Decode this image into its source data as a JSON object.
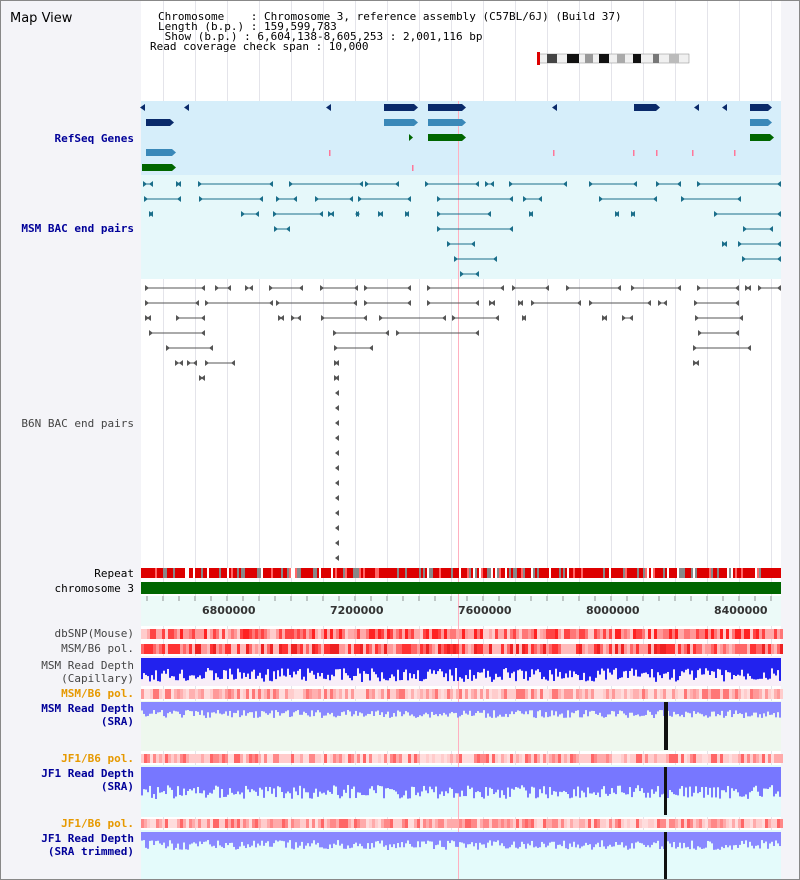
{
  "view_title": "Map View",
  "header": {
    "line1": "Chromosome    : Chromosome 3, reference assembly (C57BL/6J) (Build 37)",
    "line2": "Length (b.p.) : 159,599,783",
    "line3": " Show (b.p.) : 6,604,138-8,605,253 : 2,001,116 bp",
    "line4": "Read coverage check span : 10,000"
  },
  "tracks": {
    "refseq": "RefSeq Genes",
    "msm_bac": "MSM BAC end pairs",
    "b6n_bac": "B6N BAC end pairs",
    "repeat": "Repeat",
    "chromosome": "chromosome 3",
    "dbsnp": "dbSNP(Mouse)",
    "msm_b6_pol_1": "MSM/B6 pol.",
    "msm_read_depth_cap": "MSM Read Depth\n(Capillary)",
    "msm_b6_pol_2": "MSM/B6 pol.",
    "msm_read_depth_sra": "MSM Read Depth\n(SRA)",
    "jf1_b6_pol_1": "JF1/B6 pol.",
    "jf1_read_depth_sra": "JF1 Read Depth\n(SRA)",
    "jf1_b6_pol_2": "JF1/B6 pol.",
    "jf1_read_depth_trim": "JF1 Read Depth\n(SRA trimmed)"
  },
  "axis": {
    "ticks": [
      "6800000",
      "7200000",
      "7600000",
      "8000000",
      "8400000"
    ]
  },
  "colors": {
    "refseq_bg": "#d6eefa",
    "msm_bac_bg": "#e6f8fa",
    "gene_dark": "#0a2a6a",
    "gene_mid": "#3a88b8",
    "gene_green": "#006600",
    "bac_teal": "#1a6e8a",
    "b6n_gray": "#555555",
    "repeat_red": "#dd0000",
    "chrom_green": "#006600",
    "depth_blue": "#2222ee",
    "depth_light": "#7777ff"
  }
}
